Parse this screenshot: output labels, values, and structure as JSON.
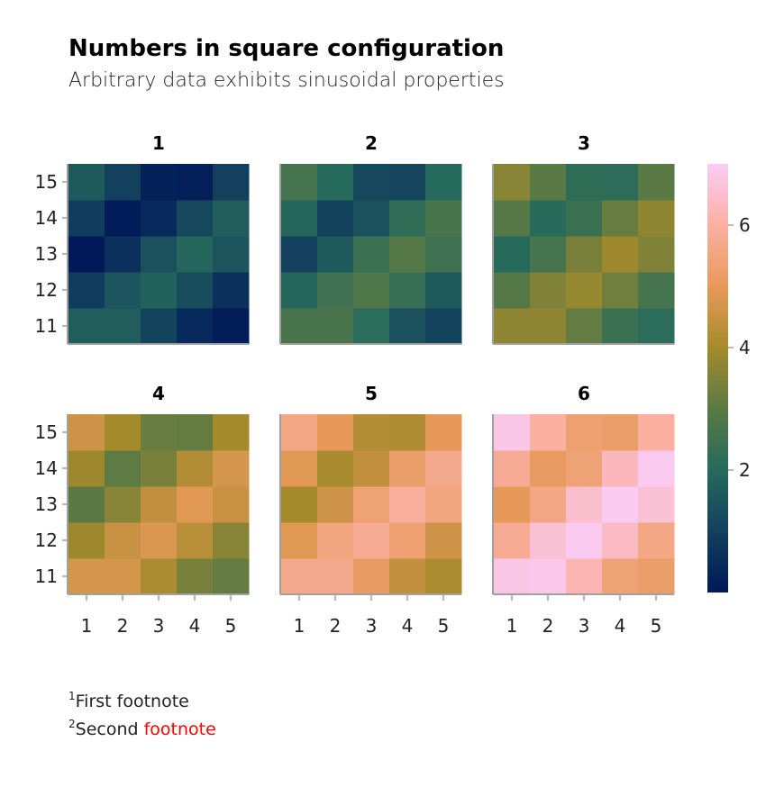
{
  "chart_data": {
    "type": "heatmap",
    "title": "Numbers in square configuration",
    "subtitle": "Arbitrary data exhibits sinusoidal properties",
    "x": [
      1,
      2,
      3,
      4,
      5
    ],
    "y": [
      11,
      12,
      13,
      14,
      15
    ],
    "x_tick_labels": [
      "1",
      "2",
      "3",
      "4",
      "5"
    ],
    "y_tick_labels": [
      "11",
      "12",
      "13",
      "14",
      "15"
    ],
    "colormap": "batlow",
    "colorrange": [
      0,
      7
    ],
    "colorbar_ticks": [
      "2",
      "4",
      "6"
    ],
    "colorbar_tick_values": [
      2,
      4,
      6
    ],
    "panels": [
      {
        "title": "1",
        "values_rows_y11_to_y15": [
          [
            1.7,
            1.7,
            1.1,
            0.4,
            0.1
          ],
          [
            0.9,
            1.5,
            1.8,
            1.3,
            0.6
          ],
          [
            0.0,
            0.6,
            1.4,
            1.9,
            1.5
          ],
          [
            0.9,
            0.05,
            0.4,
            1.2,
            1.7
          ],
          [
            1.6,
            1.0,
            0.2,
            0.15,
            1.0
          ]
        ]
      },
      {
        "title": "2",
        "values_rows_y11_to_y15": [
          [
            2.7,
            2.7,
            2.1,
            1.4,
            1.1
          ],
          [
            1.9,
            2.5,
            2.8,
            2.3,
            1.6
          ],
          [
            1.0,
            1.6,
            2.4,
            2.9,
            2.5
          ],
          [
            1.9,
            1.05,
            1.4,
            2.2,
            2.7
          ],
          [
            2.6,
            2.0,
            1.2,
            1.15,
            2.0
          ]
        ]
      },
      {
        "title": "3",
        "values_rows_y11_to_y15": [
          [
            3.7,
            3.7,
            3.1,
            2.4,
            2.1
          ],
          [
            2.9,
            3.5,
            3.8,
            3.3,
            2.6
          ],
          [
            2.0,
            2.6,
            3.4,
            3.9,
            3.5
          ],
          [
            2.9,
            2.05,
            2.4,
            3.2,
            3.7
          ],
          [
            3.6,
            3.0,
            2.2,
            2.15,
            3.0
          ]
        ]
      },
      {
        "title": "4",
        "values_rows_y11_to_y15": [
          [
            4.7,
            4.7,
            4.1,
            3.4,
            3.1
          ],
          [
            3.9,
            4.5,
            4.8,
            4.3,
            3.6
          ],
          [
            3.0,
            3.6,
            4.4,
            4.9,
            4.5
          ],
          [
            3.9,
            3.05,
            3.4,
            4.2,
            4.7
          ],
          [
            4.6,
            4.0,
            3.2,
            3.15,
            4.0
          ]
        ]
      },
      {
        "title": "5",
        "values_rows_y11_to_y15": [
          [
            5.7,
            5.7,
            5.1,
            4.4,
            4.1
          ],
          [
            4.9,
            5.5,
            5.8,
            5.3,
            4.6
          ],
          [
            4.0,
            4.6,
            5.4,
            5.9,
            5.5
          ],
          [
            4.9,
            4.05,
            4.4,
            5.2,
            5.7
          ],
          [
            5.6,
            5.0,
            4.2,
            4.15,
            5.0
          ]
        ]
      },
      {
        "title": "6",
        "values_rows_y11_to_y15": [
          [
            6.8,
            6.85,
            6.2,
            5.4,
            5.2
          ],
          [
            5.8,
            6.6,
            6.9,
            6.4,
            5.6
          ],
          [
            5.0,
            5.6,
            6.5,
            6.95,
            6.6
          ],
          [
            5.8,
            5.1,
            5.4,
            6.3,
            6.9
          ],
          [
            6.8,
            6.0,
            5.3,
            5.2,
            6.0
          ]
        ]
      }
    ],
    "grid": false
  },
  "footnotes": [
    {
      "marker": "1",
      "text": "First footnote",
      "highlight": ""
    },
    {
      "marker": "2",
      "text": "Second ",
      "highlight": "footnote"
    }
  ],
  "colors": {
    "highlight": "#ff0000",
    "axis": "#a0a0a0"
  }
}
